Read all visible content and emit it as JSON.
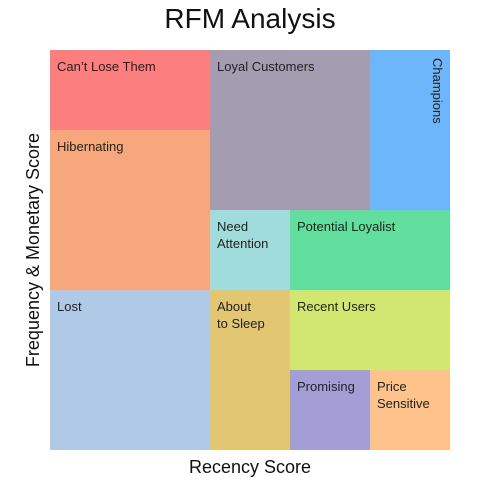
{
  "title": "RFM Analysis",
  "x_axis_label": "Recency Score",
  "y_axis_label": "Frequency & Monetary Score",
  "segments": [
    {
      "id": "cant-lose-them",
      "label": "Can’t Lose Them",
      "color": "#fc7e7e",
      "vertical": false
    },
    {
      "id": "loyal-customers",
      "label": "Loyal Customers",
      "color": "#a49db2",
      "vertical": false
    },
    {
      "id": "champions",
      "label": "Champions",
      "color": "#6eb6fb",
      "vertical": true
    },
    {
      "id": "hibernating",
      "label": "Hibernating",
      "color": "#f6a77b",
      "vertical": false
    },
    {
      "id": "need-attention",
      "label": "Need\nAttention",
      "color": "#a1dcdc",
      "vertical": false
    },
    {
      "id": "potential-loyalist",
      "label": "Potential Loyalist",
      "color": "#62df9e",
      "vertical": false
    },
    {
      "id": "lost",
      "label": "Lost",
      "color": "#b0c9e6",
      "vertical": false
    },
    {
      "id": "about-to-sleep",
      "label": "About\nto Sleep",
      "color": "#e2c672",
      "vertical": false
    },
    {
      "id": "recent-users",
      "label": "Recent Users",
      "color": "#d2e672",
      "vertical": false
    },
    {
      "id": "promising",
      "label": "Promising",
      "color": "#a39ed6",
      "vertical": false
    },
    {
      "id": "price-sensitive",
      "label": "Price\nSensitive",
      "color": "#fec38b",
      "vertical": false
    }
  ]
}
